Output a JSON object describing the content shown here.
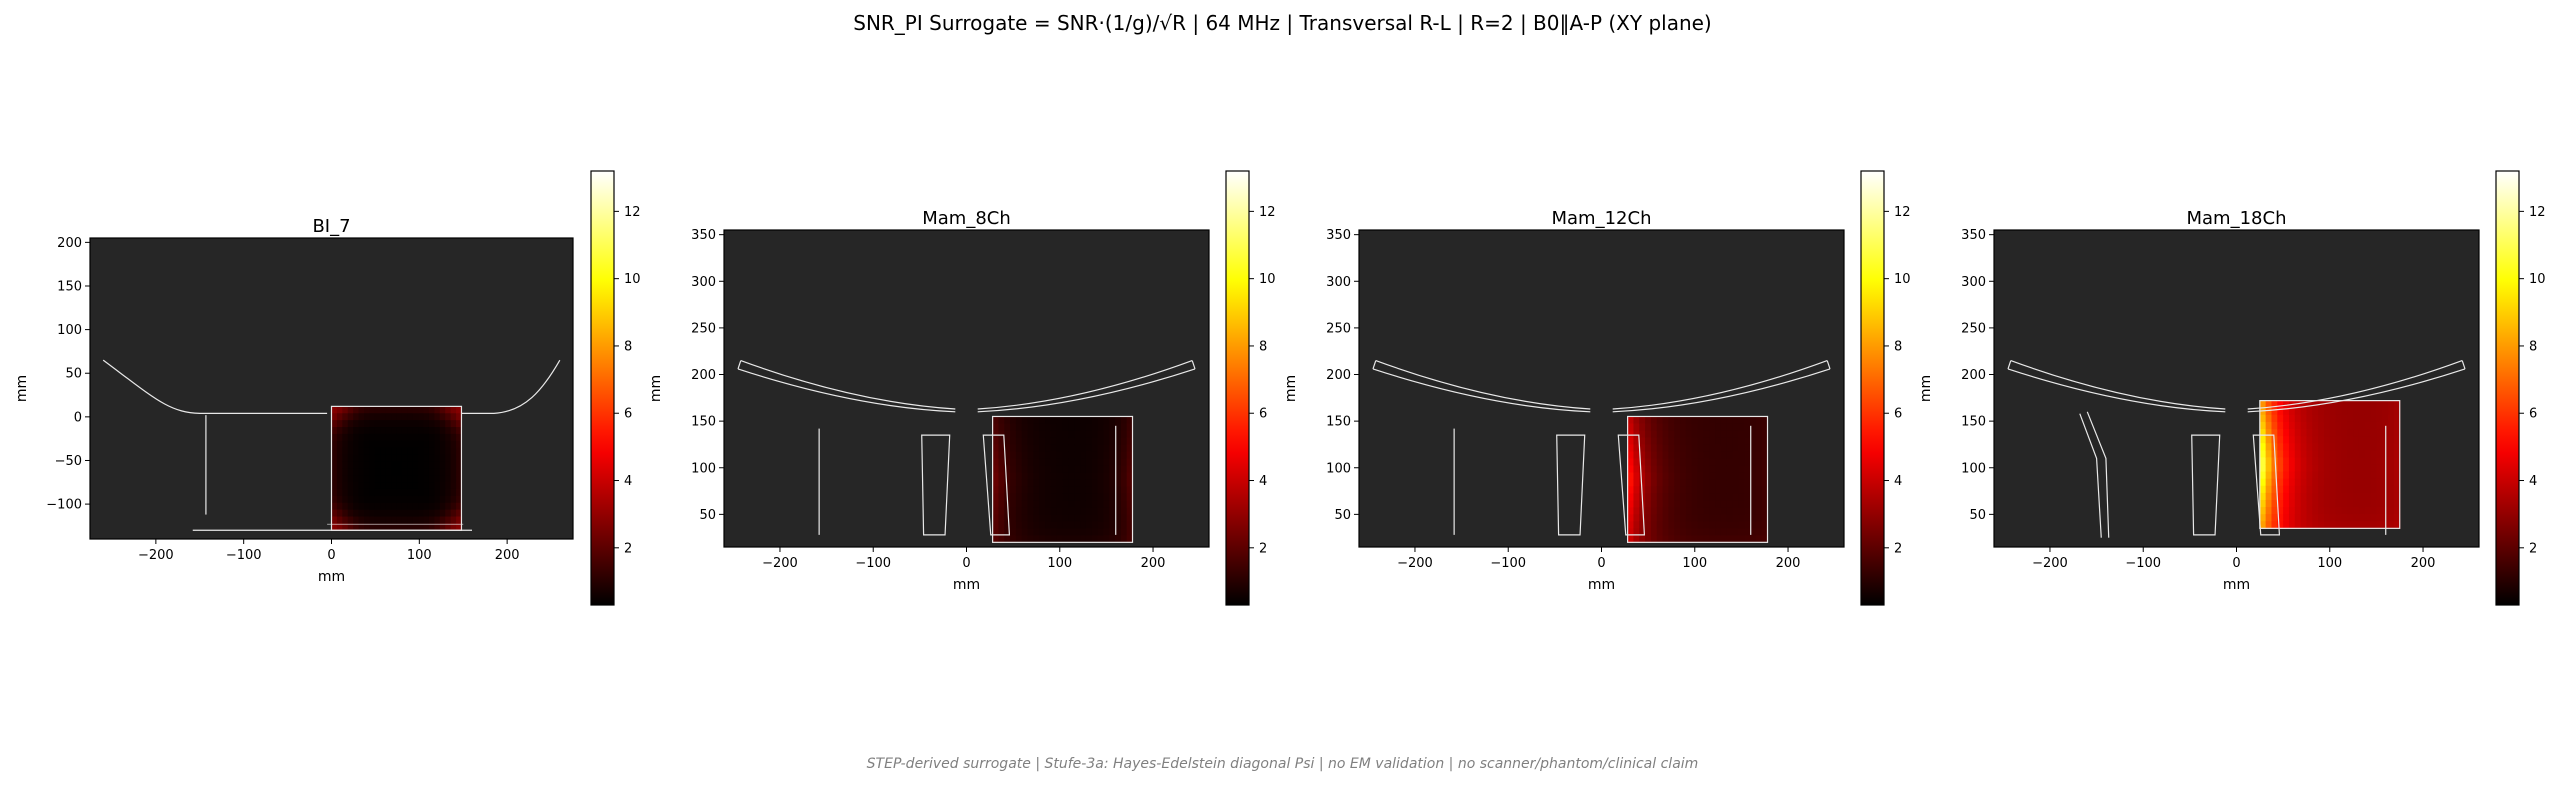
{
  "figure": {
    "suptitle": "SNR_PI Surrogate = SNR·(1/g)/√R | 64 MHz | Transversal R-L | R=2 | B0‖A-P (XY plane)",
    "footer": "STEP-derived surrogate | Stufe-3a: Hayes-Edelstein diagonal Psi | no EM validation | no scanner/phantom/clinical claim"
  },
  "colors": {
    "axes_background": "#262626",
    "outline": "#e8e8e8",
    "colormap": "hot"
  },
  "chart_data": [
    {
      "type": "heatmap",
      "title": "BI_7",
      "xlabel": "mm",
      "ylabel": "mm",
      "xlim": [
        -275,
        275
      ],
      "ylim": [
        -140,
        205
      ],
      "xticks": [
        -200,
        -100,
        0,
        100,
        200
      ],
      "yticks": [
        -100,
        -50,
        0,
        50,
        100,
        150,
        200
      ],
      "xtick_labels": [
        "−200",
        "−100",
        "0",
        "100",
        "200"
      ],
      "ytick_labels": [
        "−100",
        "−50",
        "0",
        "50",
        "100",
        "150",
        "200"
      ],
      "colorbar": {
        "range": [
          0.3,
          13.2
        ],
        "ticks": [
          2,
          4,
          6,
          8,
          10,
          12
        ],
        "tick_labels": [
          "2",
          "4",
          "6",
          "8",
          "10",
          "12"
        ]
      },
      "field_region": {
        "x": [
          0,
          148
        ],
        "y": [
          -130,
          12
        ]
      },
      "snr_level": {
        "center": 0.3,
        "edges": 1.2,
        "corners": 3.0
      }
    },
    {
      "type": "heatmap",
      "title": "Mam_8Ch",
      "xlabel": "mm",
      "ylabel": "mm",
      "xlim": [
        -260,
        260
      ],
      "ylim": [
        15,
        355
      ],
      "xticks": [
        -200,
        -100,
        0,
        100,
        200
      ],
      "yticks": [
        50,
        100,
        150,
        200,
        250,
        300,
        350
      ],
      "xtick_labels": [
        "−200",
        "−100",
        "0",
        "100",
        "200"
      ],
      "ytick_labels": [
        "50",
        "100",
        "150",
        "200",
        "250",
        "300",
        "350"
      ],
      "colorbar": {
        "range": [
          0.3,
          13.2
        ],
        "ticks": [
          2,
          4,
          6,
          8,
          10,
          12
        ],
        "tick_labels": [
          "2",
          "4",
          "6",
          "8",
          "10",
          "12"
        ]
      },
      "field_region": {
        "x": [
          28,
          178
        ],
        "y": [
          20,
          155
        ]
      },
      "snr_level": {
        "left_edge": 2.5,
        "right_edge": 2.0,
        "center": 0.5
      }
    },
    {
      "type": "heatmap",
      "title": "Mam_12Ch",
      "xlabel": "mm",
      "ylabel": "mm",
      "xlim": [
        -260,
        260
      ],
      "ylim": [
        15,
        355
      ],
      "xticks": [
        -200,
        -100,
        0,
        100,
        200
      ],
      "yticks": [
        50,
        100,
        150,
        200,
        250,
        300,
        350
      ],
      "xtick_labels": [
        "−200",
        "−100",
        "0",
        "100",
        "200"
      ],
      "ytick_labels": [
        "50",
        "100",
        "150",
        "200",
        "250",
        "300",
        "350"
      ],
      "colorbar": {
        "range": [
          0.3,
          13.2
        ],
        "ticks": [
          2,
          4,
          6,
          8,
          10,
          12
        ],
        "tick_labels": [
          "2",
          "4",
          "6",
          "8",
          "10",
          "12"
        ]
      },
      "field_region": {
        "x": [
          28,
          178
        ],
        "y": [
          20,
          155
        ]
      },
      "snr_level": {
        "left_edge": 6.0,
        "right_edge": 1.5,
        "center": 1.2
      }
    },
    {
      "type": "heatmap",
      "title": "Mam_18Ch",
      "xlabel": "mm",
      "ylabel": "mm",
      "xlim": [
        -260,
        260
      ],
      "ylim": [
        15,
        355
      ],
      "xticks": [
        -200,
        -100,
        0,
        100,
        200
      ],
      "yticks": [
        50,
        100,
        150,
        200,
        250,
        300,
        350
      ],
      "xtick_labels": [
        "−200",
        "−100",
        "0",
        "100",
        "200"
      ],
      "ytick_labels": [
        "50",
        "100",
        "150",
        "200",
        "250",
        "300",
        "350"
      ],
      "colorbar": {
        "range": [
          0.3,
          13.2
        ],
        "ticks": [
          2,
          4,
          6,
          8,
          10,
          12
        ],
        "tick_labels": [
          "2",
          "4",
          "6",
          "8",
          "10",
          "12"
        ]
      },
      "field_region": {
        "x": [
          25,
          175
        ],
        "y": [
          35,
          172
        ]
      },
      "snr_level": {
        "left_edge": 12.0,
        "right_edge": 3.5,
        "center": 3.0
      }
    }
  ]
}
